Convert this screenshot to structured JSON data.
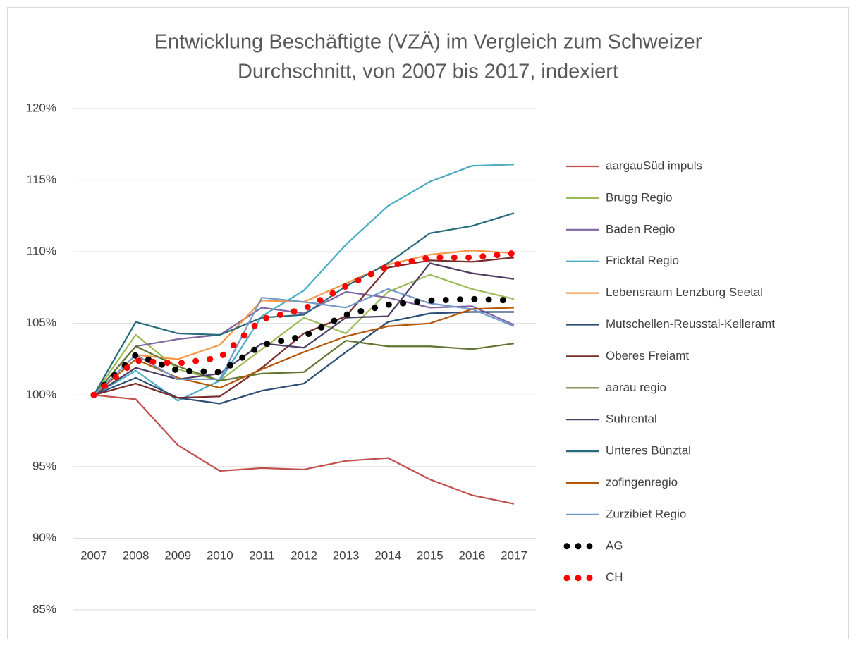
{
  "chart_data": {
    "type": "line",
    "title": [
      "Entwicklung Beschäftigte (VZÄ) im Vergleich zum Schweizer",
      "Durchschnitt, von 2007 bis 2017, indexiert"
    ],
    "categories": [
      "2007",
      "2008",
      "2009",
      "2010",
      "2011",
      "2012",
      "2013",
      "2014",
      "2015",
      "2016",
      "2017"
    ],
    "ylim": [
      85,
      120
    ],
    "yticks": [
      {
        "value": 85,
        "label": "85%"
      },
      {
        "value": 90,
        "label": "90%"
      },
      {
        "value": 95,
        "label": "95%"
      },
      {
        "value": 100,
        "label": "100%"
      },
      {
        "value": 105,
        "label": "105%"
      },
      {
        "value": 110,
        "label": "110%"
      },
      {
        "value": 115,
        "label": "115%"
      },
      {
        "value": 120,
        "label": "120%"
      }
    ],
    "grid": true,
    "legend": "right",
    "series": [
      {
        "name": "aargauSüd impuls",
        "color": "#c0504d",
        "values": [
          100,
          99.7,
          96.5,
          94.7,
          94.9,
          94.8,
          95.4,
          95.6,
          94.1,
          93.0,
          92.4
        ]
      },
      {
        "name": "Brugg Regio",
        "color": "#9bbb59",
        "values": [
          100,
          104.2,
          101.8,
          101.0,
          103.2,
          105.4,
          104.3,
          107.2,
          108.4,
          107.4,
          106.7
        ]
      },
      {
        "name": "Baden Regio",
        "color": "#8064a2",
        "values": [
          100,
          103.4,
          103.9,
          104.2,
          106.1,
          105.7,
          107.2,
          106.8,
          106.1,
          106.2,
          104.9
        ]
      },
      {
        "name": "Fricktal Regio",
        "color": "#4bacc6",
        "values": [
          100,
          101.7,
          99.6,
          101.0,
          105.5,
          107.3,
          110.5,
          113.2,
          114.9,
          116.0,
          116.1
        ]
      },
      {
        "name": "Lebensraum Lenzburg Seetal",
        "color": "#f79646",
        "values": [
          100,
          102.8,
          102.5,
          103.5,
          106.6,
          106.5,
          107.8,
          109.1,
          109.8,
          110.1,
          109.9
        ]
      },
      {
        "name": "Mutschellen-Reusstal-Kelleramt",
        "color": "#2c4d75",
        "values": [
          100,
          101.2,
          99.8,
          99.4,
          100.3,
          100.8,
          103.0,
          105.1,
          105.7,
          105.8,
          105.8
        ]
      },
      {
        "name": "Oberes Freiamt",
        "color": "#772c2a",
        "values": [
          100,
          100.8,
          99.8,
          99.9,
          101.9,
          104.3,
          105.5,
          108.9,
          109.4,
          109.3,
          109.6
        ]
      },
      {
        "name": "aarau regio",
        "color": "#5f7530",
        "values": [
          100,
          103.4,
          102.0,
          101.0,
          101.5,
          101.6,
          103.8,
          103.4,
          103.4,
          103.2,
          103.6
        ]
      },
      {
        "name": "Suhrental",
        "color": "#4d3b62",
        "values": [
          100,
          101.9,
          101.1,
          101.5,
          103.6,
          103.3,
          105.4,
          105.5,
          109.2,
          108.5,
          108.1
        ]
      },
      {
        "name": "Unteres Bünztal",
        "color": "#276a7c",
        "values": [
          100,
          105.1,
          104.3,
          104.2,
          105.4,
          105.6,
          107.6,
          109.2,
          111.3,
          111.8,
          112.7
        ]
      },
      {
        "name": "zofingenregio",
        "color": "#b65708",
        "values": [
          100,
          102.5,
          101.2,
          100.5,
          101.8,
          103.0,
          104.1,
          104.8,
          105.0,
          106.0,
          106.1
        ]
      },
      {
        "name": "Zurzibiet Regio",
        "color": "#729aca",
        "values": [
          100,
          102.8,
          101.1,
          101.1,
          106.8,
          106.5,
          106.1,
          107.4,
          106.4,
          106.0,
          104.8
        ]
      },
      {
        "name": "AG",
        "color": "#000000",
        "dotted": true,
        "values": [
          100,
          102.8,
          101.7,
          101.6,
          103.5,
          104.1,
          105.6,
          106.3,
          106.6,
          106.7,
          106.6
        ]
      },
      {
        "name": "CH",
        "color": "#ff0000",
        "dotted": true,
        "values": [
          100,
          102.4,
          102.2,
          102.6,
          105.3,
          106.0,
          107.6,
          109.0,
          109.6,
          109.6,
          109.9
        ]
      }
    ]
  }
}
